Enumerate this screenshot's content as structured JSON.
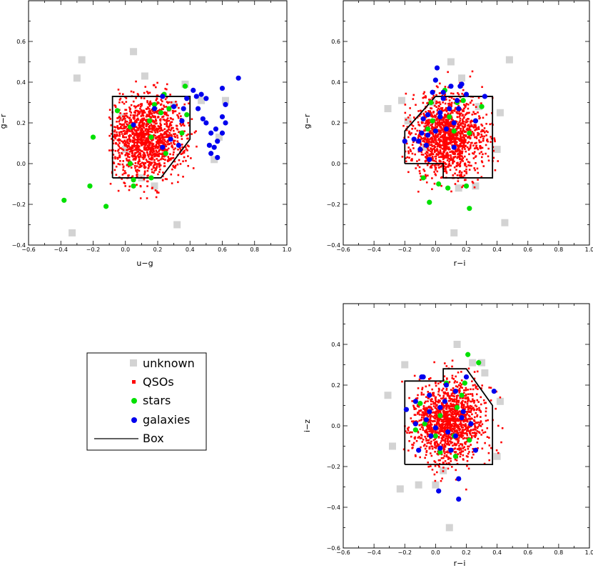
{
  "colors": {
    "unknown": "#d3d3d3",
    "qso": "#ff0000",
    "star": "#00e000",
    "galaxy": "#0000ee",
    "box": "#000000"
  },
  "legend": {
    "items": [
      {
        "key": "unknown",
        "label": "unknown",
        "marker": "square-icon"
      },
      {
        "key": "qso",
        "label": "QSOs",
        "marker": "small-square-icon"
      },
      {
        "key": "star",
        "label": "stars",
        "marker": "circle-icon"
      },
      {
        "key": "galaxy",
        "label": "galaxies",
        "marker": "circle-icon"
      },
      {
        "key": "box",
        "label": "Box",
        "marker": "line-icon"
      }
    ]
  },
  "chart_data": [
    {
      "type": "scatter",
      "title": "",
      "xlabel": "u−g",
      "ylabel": "g−r",
      "xlim": [
        -0.6,
        1.0
      ],
      "ylim": [
        -0.4,
        0.8
      ],
      "xticks": [
        -0.6,
        -0.4,
        -0.2,
        0.0,
        0.2,
        0.4,
        0.6,
        0.8,
        1.0
      ],
      "yticks": [
        -0.4,
        -0.2,
        0.0,
        0.2,
        0.4,
        0.6
      ],
      "qso_cloud": {
        "center": [
          0.13,
          0.13
        ],
        "spread": [
          0.12,
          0.1
        ],
        "range_x": [
          -0.1,
          0.55
        ],
        "range_y": [
          -0.17,
          0.58
        ]
      },
      "box": [
        [
          -0.08,
          -0.07
        ],
        [
          0.22,
          -0.07
        ],
        [
          0.4,
          0.12
        ],
        [
          0.4,
          0.33
        ],
        [
          -0.08,
          0.33
        ],
        [
          -0.08,
          -0.07
        ]
      ],
      "series": [
        {
          "name": "unknown",
          "points": [
            [
              -0.27,
              0.51
            ],
            [
              -0.3,
              0.42
            ],
            [
              -0.02,
              0.23
            ],
            [
              0.05,
              0.55
            ],
            [
              0.12,
              0.43
            ],
            [
              0.3,
              0.29
            ],
            [
              0.47,
              0.31
            ],
            [
              0.62,
              0.31
            ],
            [
              0.58,
              0.13
            ],
            [
              0.18,
              -0.11
            ],
            [
              0.1,
              -0.07
            ],
            [
              0.32,
              -0.3
            ],
            [
              -0.33,
              -0.34
            ],
            [
              0.0,
              0.07
            ],
            [
              0.37,
              0.39
            ],
            [
              0.55,
              0.02
            ]
          ]
        },
        {
          "name": "stars",
          "points": [
            [
              -0.38,
              -0.18
            ],
            [
              -0.22,
              -0.11
            ],
            [
              -0.12,
              -0.21
            ],
            [
              -0.2,
              0.13
            ],
            [
              0.05,
              -0.08
            ],
            [
              0.05,
              -0.11
            ],
            [
              0.15,
              0.21
            ],
            [
              0.18,
              0.29
            ],
            [
              0.24,
              0.34
            ],
            [
              0.16,
              0.13
            ],
            [
              0.22,
              0.25
            ],
            [
              0.27,
              0.27
            ],
            [
              0.25,
              0.05
            ],
            [
              0.03,
              0.0
            ],
            [
              -0.05,
              0.26
            ],
            [
              0.38,
              0.24
            ],
            [
              0.37,
              0.38
            ],
            [
              0.35,
              0.15
            ],
            [
              0.16,
              -0.07
            ],
            [
              0.03,
              0.18
            ]
          ]
        },
        {
          "name": "galaxies",
          "points": [
            [
              0.05,
              0.19
            ],
            [
              0.23,
              0.08
            ],
            [
              0.28,
              0.12
            ],
            [
              0.33,
              0.09
            ],
            [
              0.36,
              0.27
            ],
            [
              0.38,
              0.32
            ],
            [
              0.42,
              0.36
            ],
            [
              0.44,
              0.33
            ],
            [
              0.47,
              0.34
            ],
            [
              0.45,
              0.27
            ],
            [
              0.48,
              0.22
            ],
            [
              0.5,
              0.2
            ],
            [
              0.56,
              0.17
            ],
            [
              0.53,
              0.15
            ],
            [
              0.6,
              0.15
            ],
            [
              0.57,
              0.11
            ],
            [
              0.6,
              0.23
            ],
            [
              0.62,
              0.29
            ],
            [
              0.6,
              0.37
            ],
            [
              0.55,
              0.08
            ],
            [
              0.52,
              0.09
            ],
            [
              0.53,
              0.05
            ],
            [
              0.57,
              0.03
            ],
            [
              0.62,
              0.2
            ],
            [
              0.7,
              0.42
            ],
            [
              0.35,
              0.21
            ],
            [
              0.5,
              0.32
            ],
            [
              0.3,
              0.28
            ],
            [
              0.23,
              0.33
            ],
            [
              0.18,
              0.27
            ]
          ]
        }
      ]
    },
    {
      "type": "scatter",
      "title": "",
      "xlabel": "r−i",
      "ylabel": "g−r",
      "xlim": [
        -0.6,
        1.0
      ],
      "ylim": [
        -0.4,
        0.8
      ],
      "xticks": [
        -0.6,
        -0.4,
        -0.2,
        0.0,
        0.2,
        0.4,
        0.6,
        0.8,
        1.0
      ],
      "yticks": [
        -0.4,
        -0.2,
        0.0,
        0.2,
        0.4,
        0.6
      ],
      "qso_cloud": {
        "center": [
          0.08,
          0.13
        ],
        "spread": [
          0.12,
          0.1
        ],
        "range_x": [
          -0.22,
          0.42
        ],
        "range_y": [
          -0.14,
          0.58
        ]
      },
      "box": [
        [
          -0.2,
          0.0
        ],
        [
          -0.2,
          0.16
        ],
        [
          0.0,
          0.33
        ],
        [
          0.37,
          0.33
        ],
        [
          0.37,
          -0.07
        ],
        [
          0.05,
          -0.07
        ],
        [
          0.05,
          0.0
        ],
        [
          -0.2,
          0.0
        ]
      ],
      "series": [
        {
          "name": "unknown",
          "points": [
            [
              -0.31,
              0.27
            ],
            [
              -0.18,
              0.21
            ],
            [
              -0.22,
              0.31
            ],
            [
              0.48,
              0.51
            ],
            [
              0.17,
              0.42
            ],
            [
              0.28,
              0.28
            ],
            [
              0.42,
              0.25
            ],
            [
              -0.07,
              0.08
            ],
            [
              0.15,
              -0.12
            ],
            [
              0.45,
              -0.29
            ],
            [
              0.12,
              -0.34
            ],
            [
              0.26,
              -0.11
            ],
            [
              0.4,
              0.07
            ],
            [
              -0.02,
              0.3
            ],
            [
              0.1,
              0.5
            ]
          ]
        },
        {
          "name": "stars",
          "points": [
            [
              -0.04,
              -0.19
            ],
            [
              -0.08,
              -0.07
            ],
            [
              0.02,
              -0.1
            ],
            [
              0.08,
              -0.12
            ],
            [
              0.12,
              0.16
            ],
            [
              0.22,
              0.15
            ],
            [
              0.2,
              -0.11
            ],
            [
              0.22,
              -0.22
            ],
            [
              -0.02,
              0.21
            ],
            [
              0.06,
              0.36
            ],
            [
              0.14,
              0.3
            ],
            [
              0.3,
              0.28
            ],
            [
              0.18,
              0.31
            ],
            [
              -0.05,
              0.17
            ],
            [
              0.09,
              0.23
            ],
            [
              -0.03,
              0.3
            ]
          ]
        },
        {
          "name": "galaxies",
          "points": [
            [
              0.01,
              0.47
            ],
            [
              0.0,
              0.41
            ],
            [
              -0.02,
              0.35
            ],
            [
              0.05,
              0.32
            ],
            [
              0.03,
              0.23
            ],
            [
              -0.05,
              0.24
            ],
            [
              -0.08,
              0.22
            ],
            [
              -0.09,
              0.15
            ],
            [
              -0.11,
              0.11
            ],
            [
              -0.1,
              0.07
            ],
            [
              -0.06,
              0.09
            ],
            [
              -0.05,
              0.14
            ],
            [
              0.07,
              0.17
            ],
            [
              0.12,
              0.2
            ],
            [
              0.15,
              0.27
            ],
            [
              0.17,
              0.39
            ],
            [
              0.16,
              0.38
            ],
            [
              0.2,
              0.34
            ],
            [
              0.26,
              0.21
            ],
            [
              0.32,
              0.33
            ],
            [
              0.12,
              0.08
            ],
            [
              0.03,
              0.25
            ],
            [
              -0.2,
              0.11
            ],
            [
              0.1,
              0.38
            ],
            [
              -0.04,
              0.02
            ],
            [
              0.05,
              0.35
            ],
            [
              0.14,
              0.31
            ],
            [
              0.09,
              0.27
            ],
            [
              0.0,
              0.16
            ],
            [
              -0.14,
              0.12
            ]
          ]
        }
      ]
    },
    {
      "type": "scatter",
      "title": "",
      "xlabel": "r−i",
      "ylabel": "i−z",
      "xlim": [
        -0.6,
        1.0
      ],
      "ylim": [
        -0.6,
        0.6
      ],
      "xticks": [
        -0.6,
        -0.4,
        -0.2,
        0.0,
        0.2,
        0.4,
        0.6,
        0.8,
        1.0
      ],
      "yticks": [
        -0.6,
        -0.4,
        -0.2,
        0.0,
        0.2,
        0.4
      ],
      "qso_cloud": {
        "center": [
          0.08,
          0.02
        ],
        "spread": [
          0.12,
          0.1
        ],
        "range_x": [
          -0.22,
          0.44
        ],
        "range_y": [
          -0.34,
          0.44
        ]
      },
      "box": [
        [
          -0.2,
          -0.19
        ],
        [
          -0.2,
          0.22
        ],
        [
          0.05,
          0.22
        ],
        [
          0.05,
          0.28
        ],
        [
          0.2,
          0.28
        ],
        [
          0.37,
          0.1
        ],
        [
          0.37,
          -0.19
        ],
        [
          -0.2,
          -0.19
        ]
      ],
      "series": [
        {
          "name": "unknown",
          "points": [
            [
              -0.31,
              0.15
            ],
            [
              -0.2,
              0.3
            ],
            [
              0.14,
              0.4
            ],
            [
              0.24,
              0.31
            ],
            [
              0.32,
              0.26
            ],
            [
              -0.28,
              -0.1
            ],
            [
              -0.23,
              -0.31
            ],
            [
              -0.11,
              -0.29
            ],
            [
              0.0,
              -0.29
            ],
            [
              0.4,
              -0.15
            ],
            [
              0.09,
              -0.5
            ],
            [
              0.42,
              0.12
            ],
            [
              0.3,
              0.31
            ],
            [
              0.05,
              -0.22
            ]
          ]
        },
        {
          "name": "stars",
          "points": [
            [
              0.21,
              0.35
            ],
            [
              0.28,
              0.31
            ],
            [
              0.07,
              0.21
            ],
            [
              0.03,
              0.05
            ],
            [
              -0.07,
              0.01
            ],
            [
              0.0,
              -0.05
            ],
            [
              0.12,
              -0.05
            ],
            [
              0.14,
              0.09
            ],
            [
              0.17,
              0.15
            ],
            [
              0.22,
              -0.07
            ],
            [
              -0.13,
              -0.02
            ],
            [
              0.03,
              -0.13
            ],
            [
              0.13,
              -0.15
            ],
            [
              -0.1,
              0.11
            ],
            [
              0.19,
              0.21
            ]
          ]
        },
        {
          "name": "galaxies",
          "points": [
            [
              -0.08,
              0.24
            ],
            [
              -0.09,
              0.24
            ],
            [
              -0.13,
              0.12
            ],
            [
              -0.04,
              0.15
            ],
            [
              -0.04,
              0.07
            ],
            [
              -0.06,
              0.03
            ],
            [
              -0.19,
              0.08
            ],
            [
              -0.13,
              0.01
            ],
            [
              -0.03,
              -0.05
            ],
            [
              0.0,
              -0.01
            ],
            [
              0.03,
              -0.11
            ],
            [
              0.07,
              0.2
            ],
            [
              0.13,
              0.17
            ],
            [
              0.18,
              0.07
            ],
            [
              0.17,
              0.04
            ],
            [
              0.13,
              -0.05
            ],
            [
              0.38,
              0.17
            ],
            [
              0.15,
              -0.36
            ],
            [
              0.15,
              -0.26
            ],
            [
              0.02,
              -0.32
            ],
            [
              0.1,
              -0.12
            ],
            [
              -0.11,
              -0.12
            ],
            [
              0.03,
              0.09
            ],
            [
              0.23,
              0.01
            ],
            [
              0.08,
              -0.03
            ],
            [
              0.2,
              0.24
            ],
            [
              0.26,
              -0.12
            ],
            [
              0.06,
              0.12
            ]
          ]
        }
      ]
    }
  ]
}
